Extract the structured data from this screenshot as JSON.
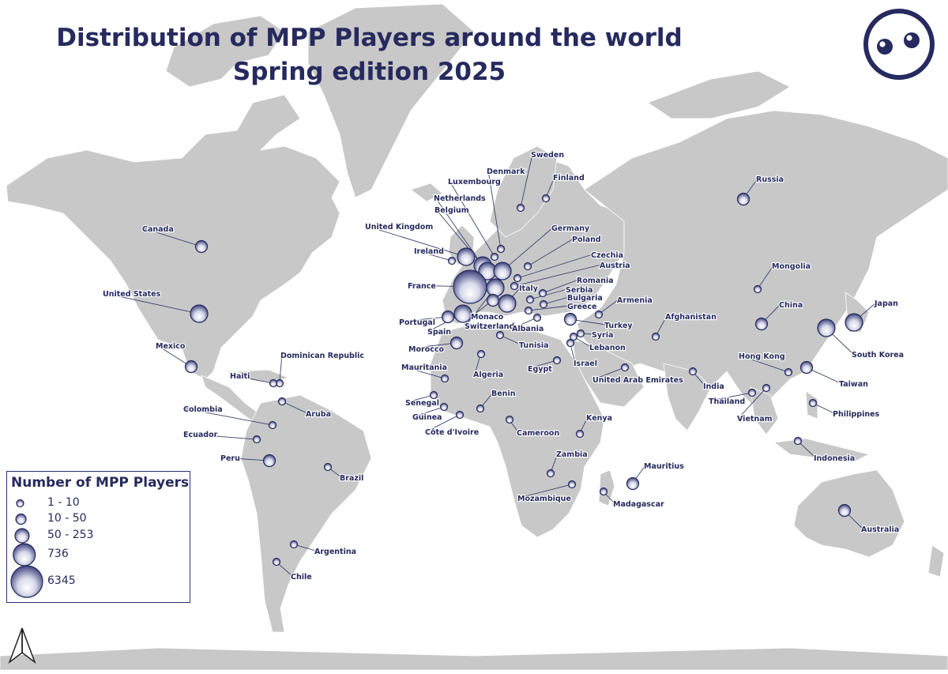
{
  "title": {
    "line1": "Distribution of MPP Players around the world",
    "line2": "Spring edition 2025"
  },
  "logo": {
    "icon": "mpp-eyes-logo-icon"
  },
  "north_arrow": {
    "icon": "north-arrow-icon"
  },
  "colors": {
    "land": "#c8c8c8",
    "sea": "#ffffff",
    "navy": "#262a5e",
    "bubble_light": "#ffffff",
    "bubble_dark": "#2d3270"
  },
  "legend": {
    "title": "Number of MPP Players",
    "items": [
      {
        "label": "1 - 10",
        "size_class": 1
      },
      {
        "label": "10 - 50",
        "size_class": 2
      },
      {
        "label": "50 - 253",
        "size_class": 3
      },
      {
        "label": "736",
        "size_class": 4
      },
      {
        "label": "6345",
        "size_class": 5
      }
    ]
  },
  "countries": [
    {
      "name": "Canada",
      "size_class": 2
    },
    {
      "name": "United States",
      "size_class": 3
    },
    {
      "name": "Mexico",
      "size_class": 2
    },
    {
      "name": "Dominican Republic",
      "size_class": 1
    },
    {
      "name": "Haiti",
      "size_class": 1
    },
    {
      "name": "Aruba",
      "size_class": 1
    },
    {
      "name": "Colombia",
      "size_class": 1
    },
    {
      "name": "Ecuador",
      "size_class": 1
    },
    {
      "name": "Peru",
      "size_class": 2
    },
    {
      "name": "Brazil",
      "size_class": 1
    },
    {
      "name": "Argentina",
      "size_class": 1
    },
    {
      "name": "Chile",
      "size_class": 1
    },
    {
      "name": "Sweden",
      "size_class": 1
    },
    {
      "name": "Denmark",
      "size_class": 1
    },
    {
      "name": "Finland",
      "size_class": 1
    },
    {
      "name": "Luxembourg",
      "size_class": 1
    },
    {
      "name": "Netherlands",
      "size_class": 3
    },
    {
      "name": "Belgium",
      "size_class": 3
    },
    {
      "name": "United Kingdom",
      "size_class": 3
    },
    {
      "name": "Ireland",
      "size_class": 1
    },
    {
      "name": "France",
      "size_class": 5
    },
    {
      "name": "Germany",
      "size_class": 3
    },
    {
      "name": "Poland",
      "size_class": 1
    },
    {
      "name": "Czechia",
      "size_class": 1
    },
    {
      "name": "Austria",
      "size_class": 1
    },
    {
      "name": "Romania",
      "size_class": 1
    },
    {
      "name": "Serbia",
      "size_class": 1
    },
    {
      "name": "Bulgaria",
      "size_class": 1
    },
    {
      "name": "Greece",
      "size_class": 1
    },
    {
      "name": "Italy",
      "size_class": 3
    },
    {
      "name": "Switzerland",
      "size_class": 3
    },
    {
      "name": "Monaco",
      "size_class": 2
    },
    {
      "name": "Albania",
      "size_class": 1
    },
    {
      "name": "Portugal",
      "size_class": 2
    },
    {
      "name": "Spain",
      "size_class": 3
    },
    {
      "name": "Morocco",
      "size_class": 2
    },
    {
      "name": "Tunisia",
      "size_class": 1
    },
    {
      "name": "Mauritania",
      "size_class": 1
    },
    {
      "name": "Algeria",
      "size_class": 1
    },
    {
      "name": "Egypt",
      "size_class": 1
    },
    {
      "name": "Senegal",
      "size_class": 1
    },
    {
      "name": "Guinea",
      "size_class": 1
    },
    {
      "name": "Benin",
      "size_class": 1
    },
    {
      "name": "Côte d'Ivoire",
      "size_class": 1
    },
    {
      "name": "Cameroon",
      "size_class": 1
    },
    {
      "name": "Kenya",
      "size_class": 1
    },
    {
      "name": "Zambia",
      "size_class": 1
    },
    {
      "name": "Mozambique",
      "size_class": 1
    },
    {
      "name": "Madagascar",
      "size_class": 1
    },
    {
      "name": "Mauritius",
      "size_class": 2
    },
    {
      "name": "Armenia",
      "size_class": 1
    },
    {
      "name": "Turkey",
      "size_class": 2
    },
    {
      "name": "Syria",
      "size_class": 1
    },
    {
      "name": "Lebanon",
      "size_class": 1
    },
    {
      "name": "Israel",
      "size_class": 1
    },
    {
      "name": "United Arab Emirates",
      "size_class": 1
    },
    {
      "name": "Afghanistan",
      "size_class": 1
    },
    {
      "name": "Russia",
      "size_class": 2
    },
    {
      "name": "Mongolia",
      "size_class": 1
    },
    {
      "name": "China",
      "size_class": 2
    },
    {
      "name": "India",
      "size_class": 1
    },
    {
      "name": "Hong Kong",
      "size_class": 1
    },
    {
      "name": "Thailand",
      "size_class": 1
    },
    {
      "name": "Vietnam",
      "size_class": 1
    },
    {
      "name": "Taiwan",
      "size_class": 2
    },
    {
      "name": "Philippines",
      "size_class": 1
    },
    {
      "name": "Indonesia",
      "size_class": 1
    },
    {
      "name": "South Korea",
      "size_class": 3
    },
    {
      "name": "Japan",
      "size_class": 3
    },
    {
      "name": "Australia",
      "size_class": 2
    }
  ]
}
